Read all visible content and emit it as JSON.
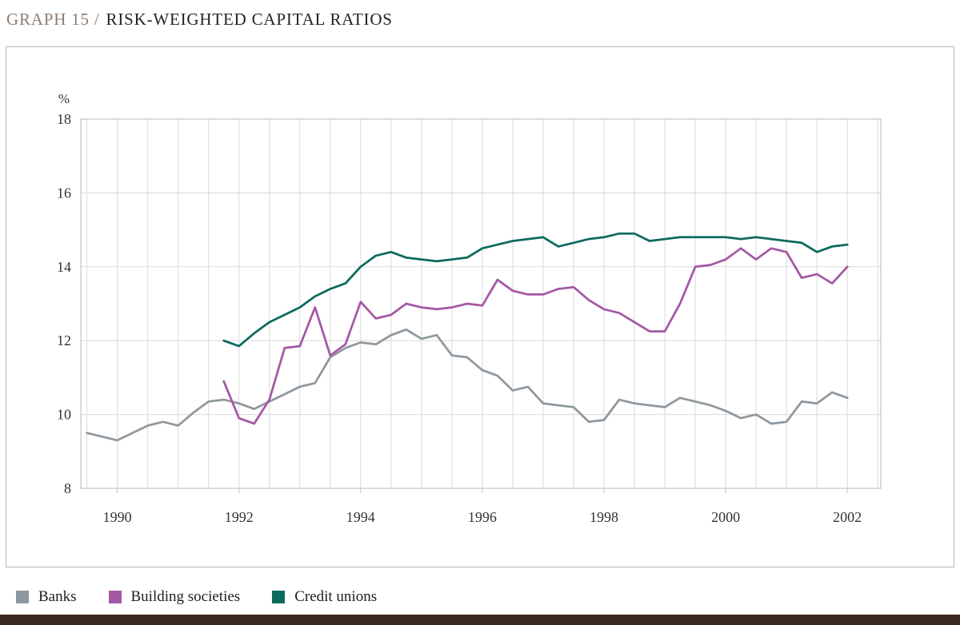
{
  "page": {
    "title_prefix": "GRAPH 15 /",
    "title": "RISK-WEIGHTED CAPITAL RATIOS",
    "title_prefix_color": "#8e7d6f",
    "title_color": "#242424",
    "footer_bar_color": "#3d2820",
    "frame_border_color": "#b9b9b9"
  },
  "chart_data": {
    "type": "line",
    "title": "GRAPH 15 / RISK-WEIGHTED CAPITAL RATIOS",
    "xlabel": "",
    "ylabel": "%",
    "ylim": [
      8,
      18
    ],
    "yticks": [
      8,
      10,
      12,
      14,
      16,
      18
    ],
    "xlim": [
      1989.4,
      2002.55
    ],
    "xticks": [
      1990,
      1992,
      1994,
      1996,
      1998,
      2000,
      2002
    ],
    "x_gridline_start": 1989.5,
    "x_gridline_step": 0.5,
    "x_gridline_end": 2002.5,
    "grid": true,
    "grid_color": "#dadada",
    "plot_border_color": "#c4c4c4",
    "legend_position": "bottom",
    "series": [
      {
        "name": "Banks",
        "color": "#8f989e",
        "x_start": 1989.5,
        "x_step": 0.25,
        "values": [
          9.5,
          9.4,
          9.3,
          9.5,
          9.7,
          9.8,
          9.7,
          10.05,
          10.35,
          10.4,
          10.3,
          10.15,
          10.35,
          10.55,
          10.75,
          10.85,
          11.55,
          11.8,
          11.95,
          11.9,
          12.15,
          12.3,
          12.05,
          12.15,
          11.6,
          11.55,
          11.2,
          11.05,
          10.65,
          10.75,
          10.3,
          10.25,
          10.2,
          9.8,
          9.85,
          10.4,
          10.3,
          10.25,
          10.2,
          10.45,
          10.35,
          10.25,
          10.1,
          9.9,
          10.0,
          9.75,
          9.8,
          10.35,
          10.3,
          10.6,
          10.45
        ]
      },
      {
        "name": "Building societies",
        "color": "#a458a4",
        "x_start": 1991.75,
        "x_step": 0.25,
        "values": [
          10.9,
          9.9,
          9.75,
          10.4,
          11.8,
          11.85,
          12.9,
          11.6,
          11.9,
          13.05,
          12.6,
          12.7,
          13.0,
          12.9,
          12.85,
          12.9,
          13.0,
          12.95,
          13.65,
          13.35,
          13.25,
          13.25,
          13.4,
          13.45,
          13.1,
          12.85,
          12.75,
          12.5,
          12.25,
          12.25,
          13.0,
          14.0,
          14.05,
          14.2,
          14.5,
          14.2,
          14.5,
          14.4,
          13.7,
          13.8,
          13.55,
          14.0
        ]
      },
      {
        "name": "Credit unions",
        "color": "#0d6a5f",
        "x_start": 1991.75,
        "x_step": 0.25,
        "values": [
          12.0,
          11.85,
          12.2,
          12.5,
          12.7,
          12.9,
          13.2,
          13.4,
          13.55,
          14.0,
          14.3,
          14.4,
          14.25,
          14.2,
          14.15,
          14.2,
          14.25,
          14.5,
          14.6,
          14.7,
          14.75,
          14.8,
          14.55,
          14.65,
          14.75,
          14.8,
          14.9,
          14.9,
          14.7,
          14.75,
          14.8,
          14.8,
          14.8,
          14.8,
          14.75,
          14.8,
          14.75,
          14.7,
          14.65,
          14.4,
          14.55,
          14.6
        ]
      }
    ]
  }
}
